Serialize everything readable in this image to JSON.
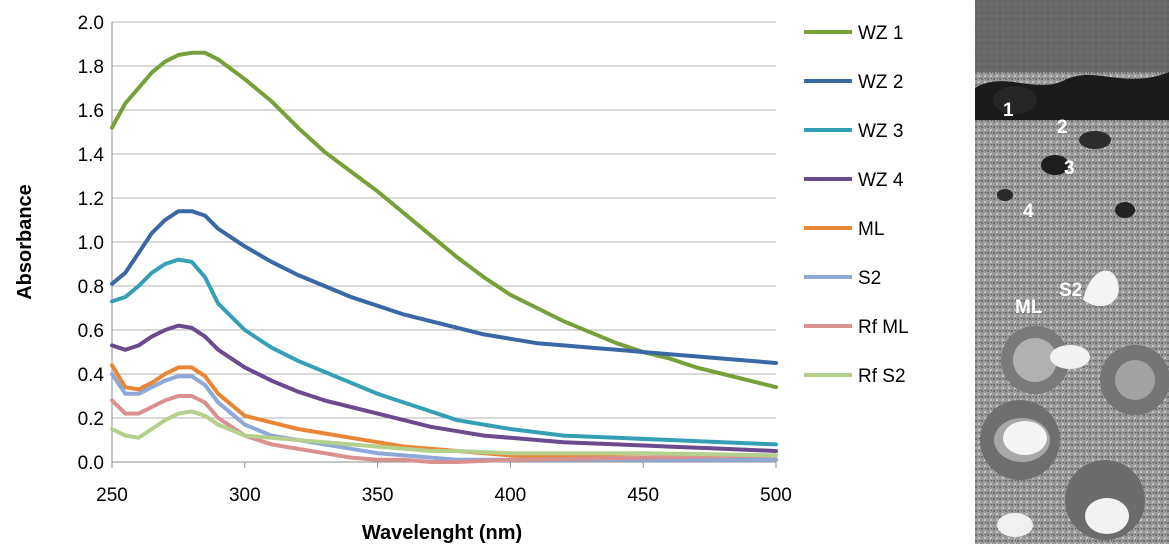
{
  "chart_data": {
    "type": "line",
    "xlabel": "Wavelenght (nm)",
    "ylabel": "Absorbance",
    "xlim": [
      250,
      500
    ],
    "ylim": [
      0,
      2.0
    ],
    "xticks": [
      "250",
      "300",
      "350",
      "400",
      "450",
      "500"
    ],
    "yticks": [
      "0.0",
      "0.2",
      "0.4",
      "0.6",
      "0.8",
      "1.0",
      "1.2",
      "1.4",
      "1.6",
      "1.8",
      "2.0"
    ],
    "grid": "horizontal",
    "legend_position": "right",
    "series": [
      {
        "name": "WZ 1",
        "color": "#77A03A",
        "x": [
          250,
          255,
          260,
          265,
          270,
          275,
          280,
          285,
          290,
          300,
          310,
          320,
          330,
          340,
          350,
          360,
          370,
          380,
          390,
          400,
          410,
          420,
          430,
          440,
          450,
          460,
          470,
          480,
          490,
          500
        ],
        "y": [
          1.52,
          1.63,
          1.7,
          1.77,
          1.82,
          1.85,
          1.86,
          1.86,
          1.83,
          1.74,
          1.64,
          1.52,
          1.41,
          1.32,
          1.23,
          1.13,
          1.03,
          0.93,
          0.84,
          0.76,
          0.7,
          0.64,
          0.59,
          0.54,
          0.5,
          0.47,
          0.43,
          0.4,
          0.37,
          0.34
        ]
      },
      {
        "name": "WZ 2",
        "color": "#3B67A4",
        "x": [
          250,
          255,
          260,
          265,
          270,
          275,
          280,
          285,
          290,
          300,
          310,
          320,
          330,
          340,
          350,
          360,
          370,
          380,
          390,
          400,
          410,
          420,
          430,
          440,
          450,
          460,
          470,
          480,
          490,
          500
        ],
        "y": [
          0.81,
          0.86,
          0.95,
          1.04,
          1.1,
          1.14,
          1.14,
          1.12,
          1.06,
          0.98,
          0.91,
          0.85,
          0.8,
          0.75,
          0.71,
          0.67,
          0.64,
          0.61,
          0.58,
          0.56,
          0.54,
          0.53,
          0.52,
          0.51,
          0.5,
          0.49,
          0.48,
          0.47,
          0.46,
          0.45
        ]
      },
      {
        "name": "WZ 3",
        "color": "#35A0B5",
        "x": [
          250,
          255,
          260,
          265,
          270,
          275,
          280,
          285,
          290,
          300,
          310,
          320,
          330,
          340,
          350,
          360,
          370,
          380,
          390,
          400,
          420,
          440,
          460,
          480,
          500
        ],
        "y": [
          0.73,
          0.75,
          0.8,
          0.86,
          0.9,
          0.92,
          0.91,
          0.84,
          0.72,
          0.6,
          0.52,
          0.46,
          0.41,
          0.36,
          0.31,
          0.27,
          0.23,
          0.19,
          0.17,
          0.15,
          0.12,
          0.11,
          0.1,
          0.09,
          0.08
        ]
      },
      {
        "name": "WZ 4",
        "color": "#6B4A8E",
        "x": [
          250,
          255,
          260,
          265,
          270,
          275,
          280,
          285,
          290,
          300,
          310,
          320,
          330,
          340,
          350,
          360,
          370,
          380,
          390,
          400,
          420,
          440,
          460,
          480,
          500
        ],
        "y": [
          0.53,
          0.51,
          0.53,
          0.57,
          0.6,
          0.62,
          0.61,
          0.57,
          0.51,
          0.43,
          0.37,
          0.32,
          0.28,
          0.25,
          0.22,
          0.19,
          0.16,
          0.14,
          0.12,
          0.11,
          0.09,
          0.08,
          0.07,
          0.06,
          0.05
        ]
      },
      {
        "name": "ML",
        "color": "#E88636",
        "x": [
          250,
          255,
          260,
          265,
          270,
          275,
          280,
          285,
          290,
          300,
          310,
          320,
          330,
          340,
          350,
          360,
          370,
          380,
          400,
          450,
          500
        ],
        "y": [
          0.44,
          0.34,
          0.33,
          0.36,
          0.4,
          0.43,
          0.43,
          0.39,
          0.31,
          0.21,
          0.18,
          0.15,
          0.13,
          0.11,
          0.09,
          0.07,
          0.06,
          0.05,
          0.03,
          0.02,
          0.01
        ]
      },
      {
        "name": "S2",
        "color": "#8EA8D8",
        "x": [
          250,
          255,
          260,
          265,
          270,
          275,
          280,
          285,
          290,
          300,
          310,
          320,
          330,
          340,
          350,
          360,
          370,
          380,
          400,
          450,
          500
        ],
        "y": [
          0.4,
          0.31,
          0.31,
          0.34,
          0.37,
          0.39,
          0.39,
          0.35,
          0.27,
          0.17,
          0.12,
          0.1,
          0.08,
          0.06,
          0.04,
          0.03,
          0.02,
          0.01,
          0.01,
          0.01,
          0.01
        ]
      },
      {
        "name": "Rf ML",
        "color": "#D99190",
        "x": [
          250,
          255,
          260,
          265,
          270,
          275,
          280,
          285,
          290,
          300,
          310,
          320,
          330,
          340,
          350,
          360,
          370,
          380,
          400,
          450,
          500
        ],
        "y": [
          0.28,
          0.22,
          0.22,
          0.25,
          0.28,
          0.3,
          0.3,
          0.27,
          0.2,
          0.12,
          0.08,
          0.06,
          0.04,
          0.02,
          0.01,
          0.01,
          0.0,
          0.0,
          0.01,
          0.02,
          0.03
        ]
      },
      {
        "name": "Rf S2",
        "color": "#B5D08C",
        "x": [
          250,
          255,
          260,
          265,
          270,
          275,
          280,
          285,
          290,
          300,
          310,
          320,
          330,
          340,
          350,
          360,
          370,
          380,
          400,
          450,
          500
        ],
        "y": [
          0.15,
          0.12,
          0.11,
          0.15,
          0.19,
          0.22,
          0.23,
          0.21,
          0.17,
          0.12,
          0.11,
          0.1,
          0.09,
          0.08,
          0.07,
          0.06,
          0.05,
          0.05,
          0.04,
          0.04,
          0.03
        ]
      }
    ]
  },
  "micrograph": {
    "labels": [
      "1",
      "2",
      "3",
      "4",
      "S2",
      "ML"
    ]
  }
}
